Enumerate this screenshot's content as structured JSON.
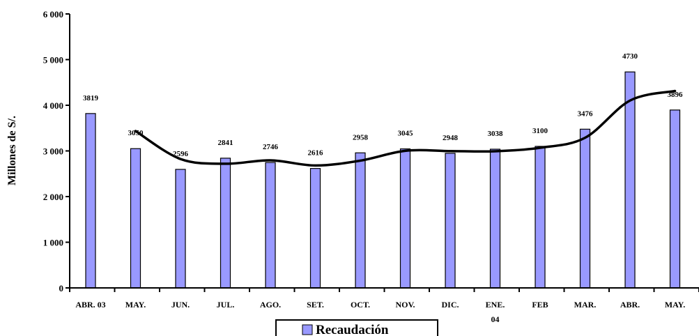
{
  "chart_data": {
    "type": "bar",
    "categories": [
      "ABR. 03",
      "MAY.",
      "JUN.",
      "JUL.",
      "AGO.",
      "SET.",
      "OCT.",
      "NOV.",
      "DIC.",
      "ENE.\n04",
      "FEB",
      "MAR.",
      "ABR.",
      "MAY."
    ],
    "series": [
      {
        "name": "Recaudación",
        "type": "bar",
        "color": "#9999ff",
        "values": [
          3819,
          3050,
          2596,
          2841,
          2746,
          2616,
          2958,
          3045,
          2948,
          3038,
          3100,
          3476,
          4730,
          3896
        ]
      },
      {
        "type": "line",
        "color": "#000000",
        "values": [
          null,
          3435,
          2823,
          2719,
          2794,
          2681,
          2787,
          3002,
          2997,
          2993,
          3069,
          3288,
          4103,
          4313
        ]
      }
    ],
    "ylabel": "Millones de S/.",
    "ylim": [
      0,
      6000
    ],
    "yticks": [
      0,
      1000,
      2000,
      3000,
      4000,
      5000,
      6000
    ],
    "ytick_labels": [
      "0",
      "1 000",
      "2 000",
      "3 000",
      "4 000",
      "5 000",
      "6 000"
    ],
    "legend": {
      "position": "bottom-center",
      "entries": [
        "Recaudación"
      ]
    },
    "grid": false
  }
}
